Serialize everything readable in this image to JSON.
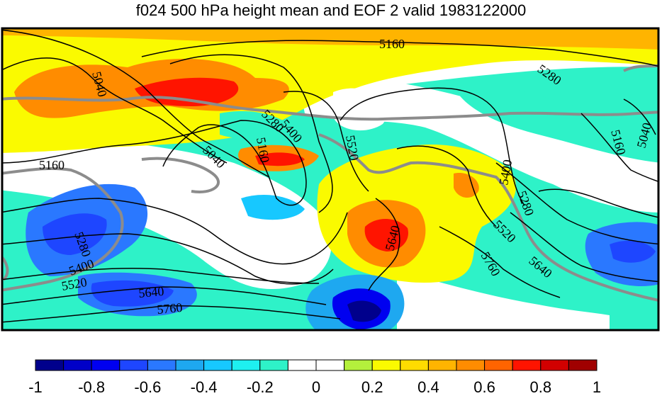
{
  "title": "f024 500 hPa height mean and EOF 2 valid 1983122000",
  "colors": {
    "fill_scale": [
      "#00008c",
      "#0000c8",
      "#0000f0",
      "#1e46ff",
      "#2a78ff",
      "#1ea8f0",
      "#17c8ff",
      "#1ef0f0",
      "#2ef2c8",
      "#ffffff",
      "#ffffff",
      "#b4f03c",
      "#fafa00",
      "#ffdc00",
      "#ffb400",
      "#ff8c00",
      "#ff6400",
      "#ff1400",
      "#d20000",
      "#a00000"
    ],
    "coastline": "#8c8c8c",
    "contour": "#000000"
  },
  "colorbar": {
    "min": -1,
    "max": 1,
    "step": 0.1,
    "tick_labels": [
      "-1",
      "-0.8",
      "-0.6",
      "-0.4",
      "-0.2",
      "0",
      "0.2",
      "0.4",
      "0.6",
      "0.8",
      "1"
    ]
  },
  "contour_labels": [
    "5160",
    "5280",
    "5040",
    "5280",
    "5400",
    "5520",
    "5160",
    "5040",
    "5160",
    "5040",
    "5160",
    "5400",
    "5280",
    "5520",
    "5640",
    "5760",
    "5640",
    "5280",
    "5400",
    "5520",
    "5640",
    "5760"
  ]
}
